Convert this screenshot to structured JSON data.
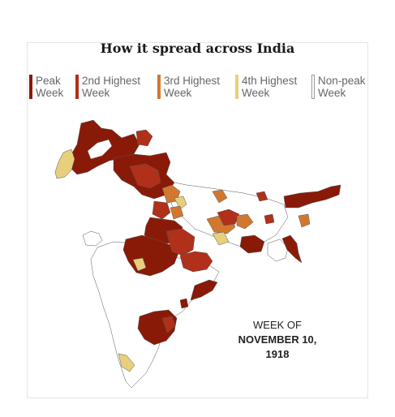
{
  "title": "How it spread across India",
  "legend": [
    {
      "label": "Peak Week",
      "color": "#8a1a08"
    },
    {
      "label": "2nd Highest Week",
      "color": "#b0301a"
    },
    {
      "label": "3rd Highest Week",
      "color": "#d2782e"
    },
    {
      "label": "4th Highest Week",
      "color": "#e8cf7c"
    },
    {
      "label": "Non-peak Week",
      "color": "#ffffff"
    }
  ],
  "caption": {
    "line1": "WEEK OF",
    "line2": "NOVEMBER 10,",
    "line3": "1918"
  },
  "colors": {
    "peak": "#8a1a08",
    "second": "#b0301a",
    "third": "#d2782e",
    "fourth": "#e8cf7c",
    "none": "#ffffff",
    "border": "#555555"
  }
}
